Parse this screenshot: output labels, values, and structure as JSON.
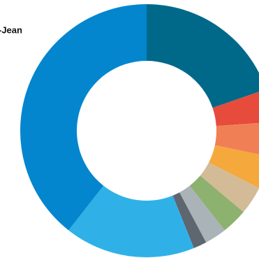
{
  "chart_data": {
    "type": "donut",
    "annotation": "-Jean",
    "categories": [
      null,
      null,
      null,
      null,
      null,
      null,
      null,
      null,
      null,
      null
    ],
    "values": [
      19.7,
      4.2,
      4.4,
      4.2,
      3.6,
      3.3,
      2.8,
      1.7,
      16.7,
      39.4
    ],
    "colors": [
      "#00698a",
      "#e64b3c",
      "#f07f56",
      "#f5a83b",
      "#d3bb97",
      "#8db16f",
      "#a9b3b8",
      "#5e6670",
      "#2fb1e8",
      "#0386cd"
    ]
  }
}
